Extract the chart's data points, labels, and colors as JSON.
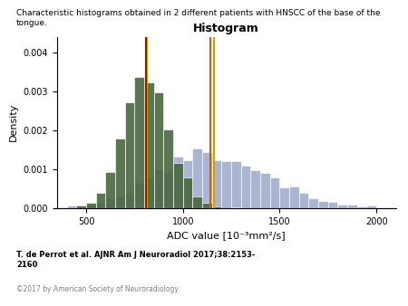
{
  "title_main": "Characteristic histograms obtained in 2 different patients with HNSCC of the base of the tongue.",
  "title_hist": "Histogram",
  "xlabel": "ADC value [10⁻³mm²/s]",
  "ylabel": "Density",
  "xlim": [
    350,
    2100
  ],
  "ylim": [
    0,
    0.0044
  ],
  "yticks": [
    0.0,
    0.001,
    0.002,
    0.003,
    0.004
  ],
  "xticks": [
    500,
    1000,
    1500,
    2000
  ],
  "patient1_color": "#4a6741",
  "patient2_color": "#9ba8c8",
  "patient1_mean": 830,
  "patient1_median": 800,
  "patient2_mean": 1300,
  "patient2_median": 1270,
  "line1_mean_color": "#c8a000",
  "line1_median_color": "#8b1a1a",
  "line2_mean_color": "#c8a000",
  "line2_median_color": "#c86400",
  "citation": "T. de Perrot et al. AJNR Am J Neuroradiol 2017;38:2153-\n2160",
  "copyright": "©2017 by American Society of Neuroradiology",
  "bg_color": "#ffffff",
  "seed1": 42,
  "seed2": 99
}
